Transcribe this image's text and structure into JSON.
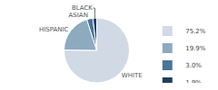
{
  "chart_data": {
    "type": "pie",
    "categories": [
      "WHITE",
      "HISPANIC",
      "ASIAN",
      "BLACK"
    ],
    "values": [
      75.2,
      19.9,
      3.0,
      1.9
    ],
    "value_labels": [
      "75.2%",
      "19.9%",
      "3.0%",
      "1.9%"
    ],
    "colors": [
      "#d0d9e4",
      "#8daabf",
      "#4a7499",
      "#1e3f5a"
    ],
    "legend": "right"
  }
}
